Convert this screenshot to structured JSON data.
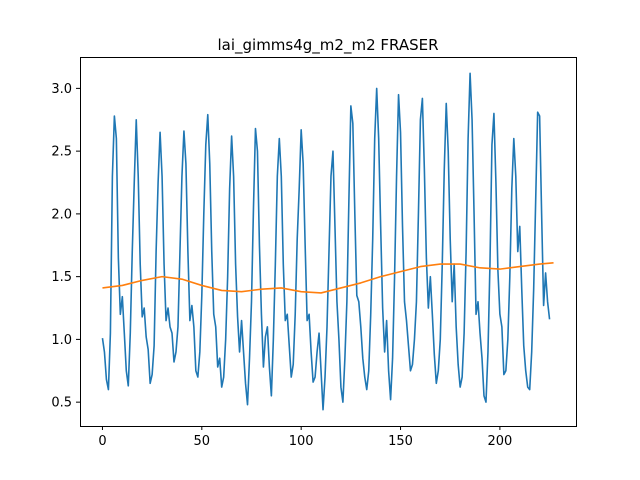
{
  "chart_data": {
    "type": "line",
    "title": "lai_gimms4g_m2_m2 FRASER",
    "xlabel": "",
    "ylabel": "",
    "xlim": [
      -11.3,
      238.3
    ],
    "ylim": [
      0.31,
      3.25
    ],
    "xticks": [
      0,
      50,
      100,
      150,
      200
    ],
    "yticks": [
      0.5,
      1.0,
      1.5,
      2.0,
      2.5,
      3.0
    ],
    "ytick_labels": [
      "0.5",
      "1.0",
      "1.5",
      "2.0",
      "2.5",
      "3.0"
    ],
    "grid": false,
    "legend": "none",
    "series": [
      {
        "color": "#1f77b4",
        "points": [
          [
            0,
            1.01
          ],
          [
            1,
            0.9
          ],
          [
            2,
            0.68
          ],
          [
            3,
            0.6
          ],
          [
            4,
            1.05
          ],
          [
            5,
            2.3
          ],
          [
            6,
            2.78
          ],
          [
            7,
            2.6
          ],
          [
            8,
            1.65
          ],
          [
            9,
            1.2
          ],
          [
            10,
            1.34
          ],
          [
            11,
            1.05
          ],
          [
            12,
            0.75
          ],
          [
            13,
            0.63
          ],
          [
            14,
            1.05
          ],
          [
            15,
            1.7
          ],
          [
            16,
            2.25
          ],
          [
            17,
            2.75
          ],
          [
            18,
            2.3
          ],
          [
            19,
            1.6
          ],
          [
            20,
            1.18
          ],
          [
            21,
            1.25
          ],
          [
            22,
            1.02
          ],
          [
            23,
            0.92
          ],
          [
            24,
            0.65
          ],
          [
            25,
            0.72
          ],
          [
            26,
            0.95
          ],
          [
            27,
            1.7
          ],
          [
            28,
            2.25
          ],
          [
            29,
            2.65
          ],
          [
            30,
            2.3
          ],
          [
            31,
            1.6
          ],
          [
            32,
            1.15
          ],
          [
            33,
            1.25
          ],
          [
            34,
            1.1
          ],
          [
            35,
            1.05
          ],
          [
            36,
            0.82
          ],
          [
            37,
            0.9
          ],
          [
            38,
            1.1
          ],
          [
            39,
            1.7
          ],
          [
            40,
            2.3
          ],
          [
            41,
            2.66
          ],
          [
            42,
            2.4
          ],
          [
            43,
            1.7
          ],
          [
            44,
            1.15
          ],
          [
            45,
            1.27
          ],
          [
            46,
            1.1
          ],
          [
            47,
            0.75
          ],
          [
            48,
            0.7
          ],
          [
            49,
            0.9
          ],
          [
            50,
            1.35
          ],
          [
            51,
            2.0
          ],
          [
            52,
            2.55
          ],
          [
            53,
            2.79
          ],
          [
            54,
            2.4
          ],
          [
            55,
            1.7
          ],
          [
            56,
            1.2
          ],
          [
            57,
            1.1
          ],
          [
            58,
            0.78
          ],
          [
            59,
            0.85
          ],
          [
            60,
            0.62
          ],
          [
            61,
            0.7
          ],
          [
            62,
            1.0
          ],
          [
            63,
            1.5
          ],
          [
            64,
            2.2
          ],
          [
            65,
            2.62
          ],
          [
            66,
            2.3
          ],
          [
            67,
            1.6
          ],
          [
            68,
            1.18
          ],
          [
            69,
            0.9
          ],
          [
            70,
            1.15
          ],
          [
            71,
            0.9
          ],
          [
            72,
            0.65
          ],
          [
            73,
            0.48
          ],
          [
            74,
            0.85
          ],
          [
            75,
            1.3
          ],
          [
            76,
            2.05
          ],
          [
            77,
            2.68
          ],
          [
            78,
            2.5
          ],
          [
            79,
            1.75
          ],
          [
            80,
            1.2
          ],
          [
            81,
            0.78
          ],
          [
            82,
            1.02
          ],
          [
            83,
            1.1
          ],
          [
            84,
            0.78
          ],
          [
            85,
            0.55
          ],
          [
            86,
            1.0
          ],
          [
            87,
            1.6
          ],
          [
            88,
            2.3
          ],
          [
            89,
            2.6
          ],
          [
            90,
            2.3
          ],
          [
            91,
            1.6
          ],
          [
            92,
            1.15
          ],
          [
            93,
            1.2
          ],
          [
            94,
            0.95
          ],
          [
            95,
            0.7
          ],
          [
            96,
            0.8
          ],
          [
            97,
            1.2
          ],
          [
            98,
            1.8
          ],
          [
            99,
            2.2
          ],
          [
            100,
            2.67
          ],
          [
            101,
            2.4
          ],
          [
            102,
            1.75
          ],
          [
            103,
            1.15
          ],
          [
            104,
            1.2
          ],
          [
            105,
            0.9
          ],
          [
            106,
            0.66
          ],
          [
            107,
            0.7
          ],
          [
            108,
            0.9
          ],
          [
            109,
            1.05
          ],
          [
            110,
            0.75
          ],
          [
            111,
            0.44
          ],
          [
            112,
            0.7
          ],
          [
            113,
            1.1
          ],
          [
            114,
            1.7
          ],
          [
            115,
            2.3
          ],
          [
            116,
            2.5
          ],
          [
            117,
            1.9
          ],
          [
            118,
            1.3
          ],
          [
            119,
            1.0
          ],
          [
            120,
            0.62
          ],
          [
            121,
            0.5
          ],
          [
            122,
            0.85
          ],
          [
            123,
            1.3
          ],
          [
            124,
            2.1
          ],
          [
            125,
            2.86
          ],
          [
            126,
            2.72
          ],
          [
            127,
            2.0
          ],
          [
            128,
            1.35
          ],
          [
            129,
            1.3
          ],
          [
            130,
            1.1
          ],
          [
            131,
            0.85
          ],
          [
            132,
            0.7
          ],
          [
            133,
            0.6
          ],
          [
            134,
            0.75
          ],
          [
            135,
            1.2
          ],
          [
            136,
            1.8
          ],
          [
            137,
            2.6
          ],
          [
            138,
            3.0
          ],
          [
            139,
            2.6
          ],
          [
            140,
            1.9
          ],
          [
            141,
            1.25
          ],
          [
            142,
            0.9
          ],
          [
            143,
            1.15
          ],
          [
            144,
            0.75
          ],
          [
            145,
            0.52
          ],
          [
            146,
            0.85
          ],
          [
            147,
            1.5
          ],
          [
            148,
            2.3
          ],
          [
            149,
            2.95
          ],
          [
            150,
            2.65
          ],
          [
            151,
            1.9
          ],
          [
            152,
            1.3
          ],
          [
            153,
            1.15
          ],
          [
            154,
            0.95
          ],
          [
            155,
            0.75
          ],
          [
            156,
            0.8
          ],
          [
            157,
            1.0
          ],
          [
            158,
            1.3
          ],
          [
            159,
            2.0
          ],
          [
            160,
            2.75
          ],
          [
            161,
            2.92
          ],
          [
            162,
            2.35
          ],
          [
            163,
            1.65
          ],
          [
            164,
            1.25
          ],
          [
            165,
            1.5
          ],
          [
            166,
            1.2
          ],
          [
            167,
            0.88
          ],
          [
            168,
            0.65
          ],
          [
            169,
            0.75
          ],
          [
            170,
            1.0
          ],
          [
            171,
            1.6
          ],
          [
            172,
            2.35
          ],
          [
            173,
            2.88
          ],
          [
            174,
            2.5
          ],
          [
            175,
            1.8
          ],
          [
            176,
            1.3
          ],
          [
            177,
            1.6
          ],
          [
            178,
            1.1
          ],
          [
            179,
            0.8
          ],
          [
            180,
            0.62
          ],
          [
            181,
            0.7
          ],
          [
            182,
            1.05
          ],
          [
            183,
            1.7
          ],
          [
            184,
            2.6
          ],
          [
            185,
            3.12
          ],
          [
            186,
            2.75
          ],
          [
            187,
            2.0
          ],
          [
            188,
            1.2
          ],
          [
            189,
            1.3
          ],
          [
            190,
            1.05
          ],
          [
            191,
            0.85
          ],
          [
            192,
            0.55
          ],
          [
            193,
            0.5
          ],
          [
            194,
            0.9
          ],
          [
            195,
            1.6
          ],
          [
            196,
            2.55
          ],
          [
            197,
            2.8
          ],
          [
            198,
            2.25
          ],
          [
            199,
            1.55
          ],
          [
            200,
            1.2
          ],
          [
            201,
            1.1
          ],
          [
            202,
            0.72
          ],
          [
            203,
            0.75
          ],
          [
            204,
            1.0
          ],
          [
            205,
            1.5
          ],
          [
            206,
            2.2
          ],
          [
            207,
            2.6
          ],
          [
            208,
            2.3
          ],
          [
            209,
            1.7
          ],
          [
            210,
            1.9
          ],
          [
            211,
            1.4
          ],
          [
            212,
            0.95
          ],
          [
            213,
            0.75
          ],
          [
            214,
            0.62
          ],
          [
            215,
            0.6
          ],
          [
            216,
            0.9
          ],
          [
            217,
            1.4
          ],
          [
            218,
            2.1
          ],
          [
            219,
            2.81
          ],
          [
            220,
            2.78
          ],
          [
            221,
            2.0
          ],
          [
            222,
            1.27
          ],
          [
            223,
            1.53
          ],
          [
            224,
            1.3
          ],
          [
            225,
            1.16
          ]
        ]
      },
      {
        "color": "#ff7f0e",
        "points": [
          [
            0,
            1.41
          ],
          [
            10,
            1.43
          ],
          [
            20,
            1.47
          ],
          [
            30,
            1.5
          ],
          [
            40,
            1.48
          ],
          [
            50,
            1.43
          ],
          [
            60,
            1.39
          ],
          [
            70,
            1.38
          ],
          [
            80,
            1.4
          ],
          [
            90,
            1.41
          ],
          [
            100,
            1.38
          ],
          [
            110,
            1.37
          ],
          [
            120,
            1.41
          ],
          [
            130,
            1.45
          ],
          [
            140,
            1.5
          ],
          [
            150,
            1.54
          ],
          [
            160,
            1.58
          ],
          [
            170,
            1.6
          ],
          [
            180,
            1.6
          ],
          [
            190,
            1.57
          ],
          [
            200,
            1.56
          ],
          [
            210,
            1.58
          ],
          [
            220,
            1.6
          ],
          [
            227,
            1.61
          ]
        ]
      }
    ]
  }
}
